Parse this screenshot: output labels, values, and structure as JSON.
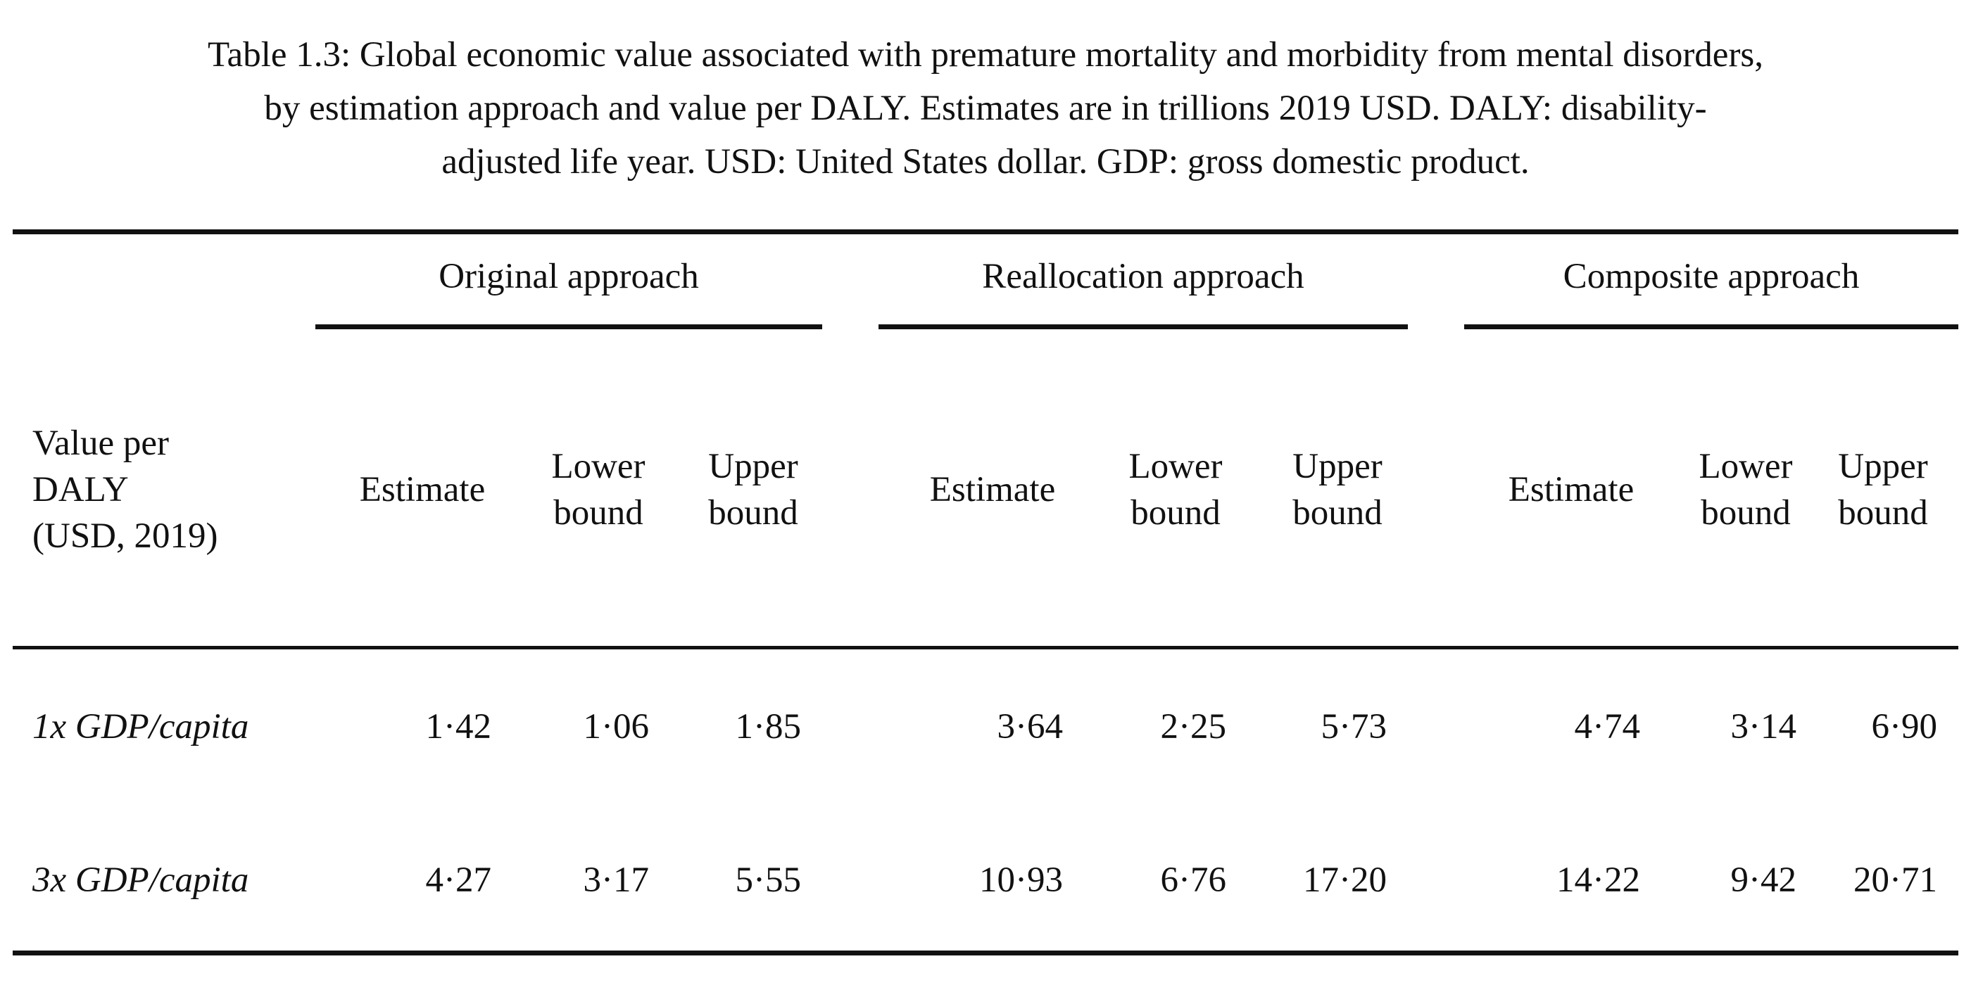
{
  "caption": {
    "line1": "Table 1.3: Global economic value associated with premature mortality and morbidity from mental disorders,",
    "line2": "by estimation approach and value per DALY. Estimates are in trillions 2019 USD. DALY: disability-",
    "line3": "adjusted life year. USD: United States dollar. GDP: gross domestic product."
  },
  "table": {
    "stub_header": {
      "line1": "Value per",
      "line2": "DALY",
      "line3": "(USD, 2019)"
    },
    "groups": [
      {
        "label": "Original approach"
      },
      {
        "label": "Reallocation approach"
      },
      {
        "label": "Composite approach"
      }
    ],
    "column_headers": {
      "estimate": "Estimate",
      "lower_line1": "Lower",
      "lower_line2": "bound",
      "upper_line1": "Upper",
      "upper_line2": "bound"
    },
    "rows": [
      {
        "label": "1x GDP/capita",
        "values": [
          "1·42",
          "1·06",
          "1·85",
          "3·64",
          "2·25",
          "5·73",
          "4·74",
          "3·14",
          "6·90"
        ]
      },
      {
        "label": "3x GDP/capita",
        "values": [
          "4·27",
          "3·17",
          "5·55",
          "10·93",
          "6·76",
          "17·20",
          "14·22",
          "9·42",
          "20·71"
        ]
      }
    ]
  }
}
